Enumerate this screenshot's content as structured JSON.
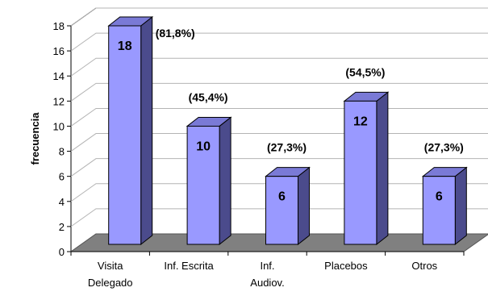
{
  "chart_data": {
    "type": "bar",
    "style": "3d",
    "categories": [
      [
        "Visita",
        "Delegado"
      ],
      [
        "Inf. Escrita"
      ],
      [
        "Inf.",
        "Audiov."
      ],
      [
        "Placebos"
      ],
      [
        "Otros"
      ]
    ],
    "values": [
      18,
      10,
      6,
      12,
      6
    ],
    "value_labels": [
      "18",
      "10",
      "6",
      "12",
      "6"
    ],
    "percent_labels": [
      "(81,8%)",
      "(45,4%)",
      "(27,3%)",
      "(54,5%)",
      "(27,3%)"
    ],
    "ylabel": "frecuencia",
    "xlabel": "",
    "ylim": [
      0,
      18
    ],
    "yticks": [
      0,
      2,
      4,
      6,
      8,
      10,
      12,
      14,
      16,
      18
    ],
    "grid": true,
    "legend": "none",
    "colors": {
      "bar_front": "#9999ff",
      "bar_side": "#4b4b8c",
      "bar_top": "#7a7ad6",
      "floor": "#808080",
      "grid": "#b4b4b4"
    }
  }
}
